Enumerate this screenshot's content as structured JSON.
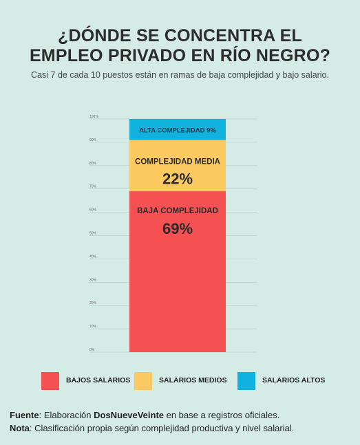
{
  "title_line1": "¿DÓNDE SE CONCENTRA EL",
  "title_line2": "EMPLEO PRIVADO EN RÍO NEGRO?",
  "subtitle": "Casi 7 de cada 10 puestos están en ramas de baja complejidad y bajo salario.",
  "chart_data": {
    "type": "bar",
    "stacked": true,
    "ylim": [
      0,
      100
    ],
    "yticks": [
      "0%",
      "10%",
      "20%",
      "30%",
      "40%",
      "50%",
      "60%",
      "70%",
      "80%",
      "90%",
      "100%"
    ],
    "grid": true,
    "series": [
      {
        "name": "BAJA COMPLEJIDAD",
        "value": 69,
        "value_label": "69%",
        "color": "#f55052"
      },
      {
        "name": "COMPLEJIDAD MEDIA",
        "value": 22,
        "value_label": "22%",
        "color": "#fcca60"
      },
      {
        "name": "ALTA COMPLEJIDAD",
        "value": 9,
        "value_label": "9%",
        "color": "#12b2df"
      }
    ]
  },
  "legend": [
    {
      "label": "BAJOS SALARIOS",
      "color": "#f55052"
    },
    {
      "label": "SALARIOS MEDIOS",
      "color": "#fcca60"
    },
    {
      "label": "SALARIOS ALTOS",
      "color": "#12b2df"
    }
  ],
  "footer": {
    "fuente_label": "Fuente",
    "fuente_pre": ": Elaboración ",
    "fuente_brand": "DosNueveVeinte",
    "fuente_post": " en base a registros oficiales.",
    "nota_label": "Nota",
    "nota_text": ": Clasificación propia según complejidad productiva y nivel salarial."
  }
}
